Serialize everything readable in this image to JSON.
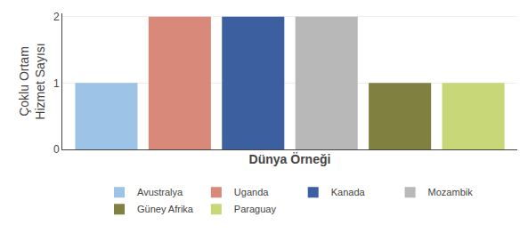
{
  "chart_data": {
    "type": "bar",
    "categories": [
      "Avustralya",
      "Uganda",
      "Kanada",
      "Mozambik",
      "Güney Afrika",
      "Paraguay"
    ],
    "values": [
      1,
      2,
      2,
      2,
      1,
      1
    ],
    "colors": [
      "#9dc3e6",
      "#d9897a",
      "#3c5fa0",
      "#b8b8b8",
      "#808040",
      "#c8d878"
    ],
    "xlabel": "Dünya Örneği",
    "ylabel": "Çoklu Ortam\nHizmet Sayısı",
    "ylim": [
      0,
      2.05
    ],
    "yticks": [
      0,
      1,
      2
    ],
    "grid": true,
    "legend": "bottom",
    "tick_labels": "y"
  }
}
